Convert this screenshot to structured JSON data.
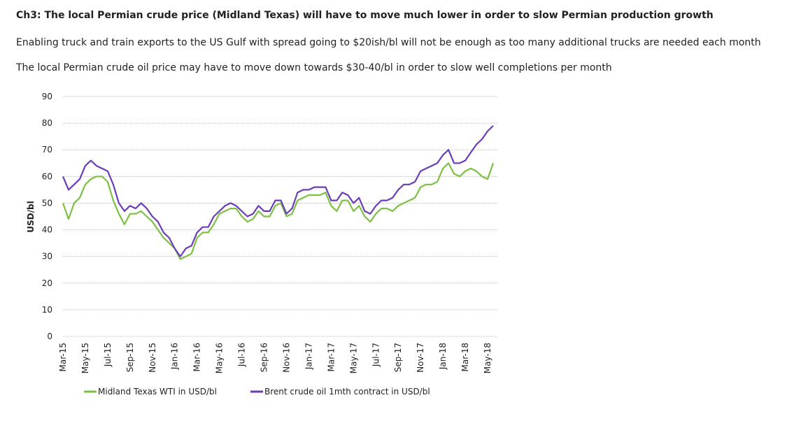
{
  "chart_data": {
    "type": "line",
    "title": "Ch3: The local Permian crude price (Midland Texas) will have to move much lower in order to slow Permian production growth",
    "subtitles": [
      "Enabling truck and train exports to the US Gulf with spread going to $20ish/bl will not be enough as too many additional trucks are needed each month",
      "The local Permian crude oil price may have to move down towards $30-40/bl in order to slow well completions per month"
    ],
    "y_label": "USD/bl",
    "categories": [
      "Mar-15",
      null,
      null,
      null,
      "May-15",
      null,
      null,
      null,
      "Jul-15",
      null,
      null,
      null,
      "Sep-15",
      null,
      null,
      null,
      "Nov-15",
      null,
      null,
      null,
      "Jan-16",
      null,
      null,
      null,
      "Mar-16",
      null,
      null,
      null,
      "May-16",
      null,
      null,
      null,
      "Jul-16",
      null,
      null,
      null,
      "Sep-16",
      null,
      null,
      null,
      "Nov-16",
      null,
      null,
      null,
      "Jan-17",
      null,
      null,
      null,
      "Mar-17",
      null,
      null,
      null,
      "May-17",
      null,
      null,
      null,
      "Jul-17",
      null,
      null,
      null,
      "Sep-17",
      null,
      null,
      null,
      "Nov-17",
      null,
      null,
      null,
      "Jan-18",
      null,
      null,
      null,
      "Mar-18",
      null,
      null,
      null,
      "May-18",
      null
    ],
    "series": [
      {
        "name": "Midland Texas WTI in USD/bl",
        "color": "#7cc142",
        "values": [
          50,
          44,
          50,
          52,
          57,
          59,
          60,
          60,
          58,
          51,
          46,
          42,
          46,
          46,
          47,
          45,
          43,
          40,
          37,
          35,
          33,
          29,
          30,
          31,
          37,
          39,
          39,
          42,
          46,
          47,
          48,
          48,
          45,
          43,
          44,
          47,
          45,
          45,
          49,
          50,
          45,
          46,
          51,
          52,
          53,
          53,
          53,
          54,
          49,
          47,
          51,
          51,
          47,
          49,
          45,
          43,
          46,
          48,
          48,
          47,
          49,
          50,
          51,
          52,
          56,
          57,
          57,
          58,
          63,
          65,
          61,
          60,
          62,
          63,
          62,
          60,
          59,
          65
        ]
      },
      {
        "name": "Brent crude oil 1mth contract in USD/bl",
        "color": "#6a3db8",
        "values": [
          60,
          55,
          57,
          59,
          64,
          66,
          64,
          63,
          62,
          57,
          50,
          47,
          49,
          48,
          50,
          48,
          45,
          43,
          39,
          37,
          33,
          30,
          33,
          34,
          39,
          41,
          41,
          45,
          47,
          49,
          50,
          49,
          47,
          45,
          46,
          49,
          47,
          47,
          51,
          51,
          46,
          48,
          54,
          55,
          55,
          56,
          56,
          56,
          51,
          51,
          54,
          53,
          50,
          52,
          47,
          46,
          49,
          51,
          51,
          52,
          55,
          57,
          57,
          58,
          62,
          63,
          64,
          65,
          68,
          70,
          65,
          65,
          66,
          69,
          72,
          74,
          77,
          79
        ]
      }
    ],
    "ylim": [
      0,
      90
    ],
    "yticks": [
      0,
      10,
      20,
      30,
      40,
      50,
      60,
      70,
      80,
      90
    ],
    "grid": true,
    "legend": "bottom"
  }
}
